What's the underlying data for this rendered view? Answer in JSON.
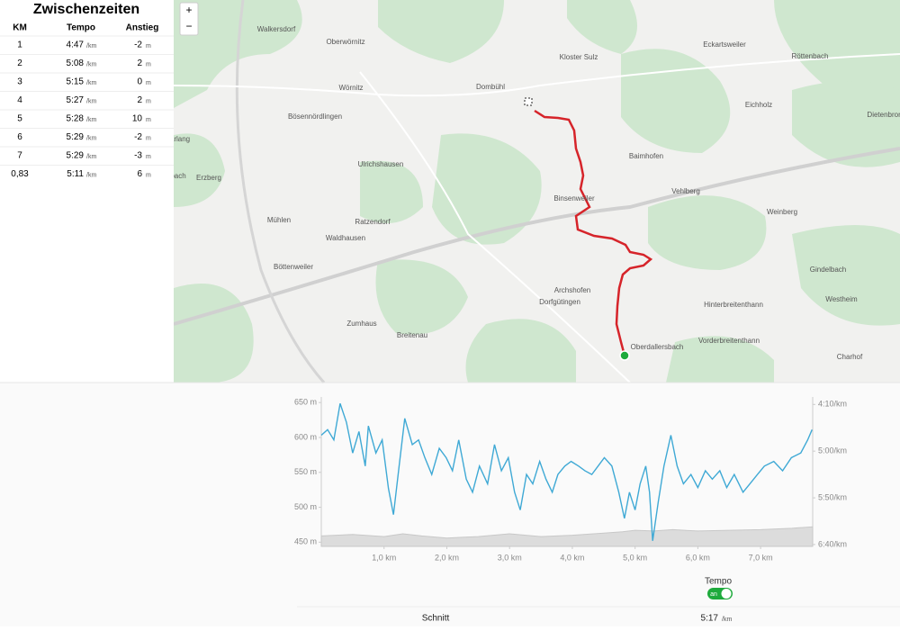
{
  "splits": {
    "title": "Zwischenzeiten",
    "headers": [
      "KM",
      "Tempo",
      "Anstieg"
    ],
    "rows": [
      {
        "km": "1",
        "tempo": "4:47",
        "tempo_unit": "/km",
        "ascent": "-2",
        "ascent_unit": "m"
      },
      {
        "km": "2",
        "tempo": "5:08",
        "tempo_unit": "/km",
        "ascent": "2",
        "ascent_unit": "m"
      },
      {
        "km": "3",
        "tempo": "5:15",
        "tempo_unit": "/km",
        "ascent": "0",
        "ascent_unit": "m"
      },
      {
        "km": "4",
        "tempo": "5:27",
        "tempo_unit": "/km",
        "ascent": "2",
        "ascent_unit": "m"
      },
      {
        "km": "5",
        "tempo": "5:28",
        "tempo_unit": "/km",
        "ascent": "10",
        "ascent_unit": "m"
      },
      {
        "km": "6",
        "tempo": "5:29",
        "tempo_unit": "/km",
        "ascent": "-2",
        "ascent_unit": "m"
      },
      {
        "km": "7",
        "tempo": "5:29",
        "tempo_unit": "/km",
        "ascent": "-3",
        "ascent_unit": "m"
      },
      {
        "km": "0,83",
        "tempo": "5:11",
        "tempo_unit": "/km",
        "ascent": "6",
        "ascent_unit": "m"
      }
    ]
  },
  "map": {
    "zoom_in": "+",
    "zoom_out": "−",
    "places": [
      "Walkersdorf",
      "Oberwörnitz",
      "Kloster Sulz",
      "Eckartsweiler",
      "Röttenbach",
      "Wörnitz",
      "Dombühl",
      "Eichholz",
      "Dietenbron",
      "Bösennördlingen",
      "Baimhofen",
      "Ulrichshausen",
      "Erzberg",
      "Binsenweiler",
      "Vehlberg",
      "Weinberg",
      "Mühlen",
      "Ratzendorf",
      "Waldhausen",
      "Gindelbach",
      "Böttenweiler",
      "Archshofen",
      "Dorfgütingen",
      "Hinterbreitenthann",
      "Westheim",
      "Zumhaus",
      "Breitenau",
      "Oberdallersbach",
      "Vorderbreitenthann",
      "Charhof",
      "arlang",
      "bach"
    ]
  },
  "chart_data": {
    "type": "line",
    "xlim": [
      0,
      7.83
    ],
    "xticks": [
      {
        "value": 1,
        "label": "1,0 km"
      },
      {
        "value": 2,
        "label": "2,0 km"
      },
      {
        "value": 3,
        "label": "3,0 km"
      },
      {
        "value": 4,
        "label": "4,0 km"
      },
      {
        "value": 5,
        "label": "5,0 km"
      },
      {
        "value": 6,
        "label": "6,0 km"
      },
      {
        "value": 7,
        "label": "7,0 km"
      }
    ],
    "ylim": [
      444,
      658
    ],
    "yticks": [
      {
        "value": 450,
        "label": "450 m"
      },
      {
        "value": 500,
        "label": "500 m"
      },
      {
        "value": 550,
        "label": "550 m"
      },
      {
        "value": 600,
        "label": "600 m"
      },
      {
        "value": 650,
        "label": "650 m"
      }
    ],
    "y2lim": [
      402,
      242
    ],
    "y2ticks": [
      {
        "value": 250,
        "label": "4:10/km"
      },
      {
        "value": 300,
        "label": "5:00/km"
      },
      {
        "value": 350,
        "label": "5:50/km"
      },
      {
        "value": 400,
        "label": "6:40/km"
      }
    ],
    "series": [
      {
        "name": "Tempo",
        "axis": "y2",
        "color": "#3fa9d5",
        "x": [
          0,
          0.1,
          0.2,
          0.3,
          0.4,
          0.5,
          0.6,
          0.7,
          0.75,
          0.87,
          0.97,
          1.07,
          1.15,
          1.24,
          1.33,
          1.45,
          1.55,
          1.65,
          1.76,
          1.88,
          1.99,
          2.09,
          2.19,
          2.31,
          2.41,
          2.52,
          2.65,
          2.76,
          2.87,
          2.98,
          3.08,
          3.17,
          3.27,
          3.37,
          3.48,
          3.58,
          3.68,
          3.77,
          3.88,
          3.98,
          4.1,
          4.2,
          4.31,
          4.41,
          4.51,
          4.63,
          4.74,
          4.83,
          4.91,
          5.0,
          5.08,
          5.17,
          5.23,
          5.28,
          5.37,
          5.46,
          5.57,
          5.67,
          5.77,
          5.89,
          6.0,
          6.12,
          6.23,
          6.35,
          6.46,
          6.58,
          6.72,
          6.83,
          6.95,
          7.06,
          7.21,
          7.35,
          7.49,
          7.64,
          7.75,
          7.82
        ],
        "values": [
          283,
          277,
          288,
          249,
          269,
          302,
          279,
          316,
          273,
          302,
          288,
          340,
          368,
          316,
          265,
          293,
          288,
          307,
          325,
          297,
          307,
          321,
          288,
          330,
          344,
          316,
          335,
          293,
          321,
          307,
          344,
          363,
          325,
          335,
          311,
          330,
          344,
          325,
          316,
          311,
          316,
          321,
          325,
          316,
          307,
          316,
          344,
          372,
          344,
          363,
          335,
          316,
          344,
          396,
          354,
          316,
          283,
          316,
          335,
          325,
          339,
          321,
          330,
          321,
          339,
          325,
          344,
          335,
          325,
          316,
          311,
          321,
          307,
          302,
          288,
          277
        ]
      },
      {
        "axis": "y",
        "color": "#dcdcdc",
        "x": [
          0,
          0.5,
          1,
          1.3,
          1.6,
          2,
          2.5,
          3,
          3.5,
          4,
          4.5,
          4.8,
          5,
          5.3,
          5.6,
          6,
          6.5,
          7,
          7.5,
          7.83
        ],
        "values": [
          459,
          461,
          458,
          462,
          459,
          456,
          458,
          462,
          458,
          460,
          463,
          465,
          467,
          466,
          468,
          466,
          467,
          468,
          470,
          472
        ]
      }
    ]
  },
  "toggle": {
    "label": "Tempo",
    "state": "an"
  },
  "summary": {
    "label": "Schnitt",
    "value": "5:17",
    "unit": "/km"
  }
}
